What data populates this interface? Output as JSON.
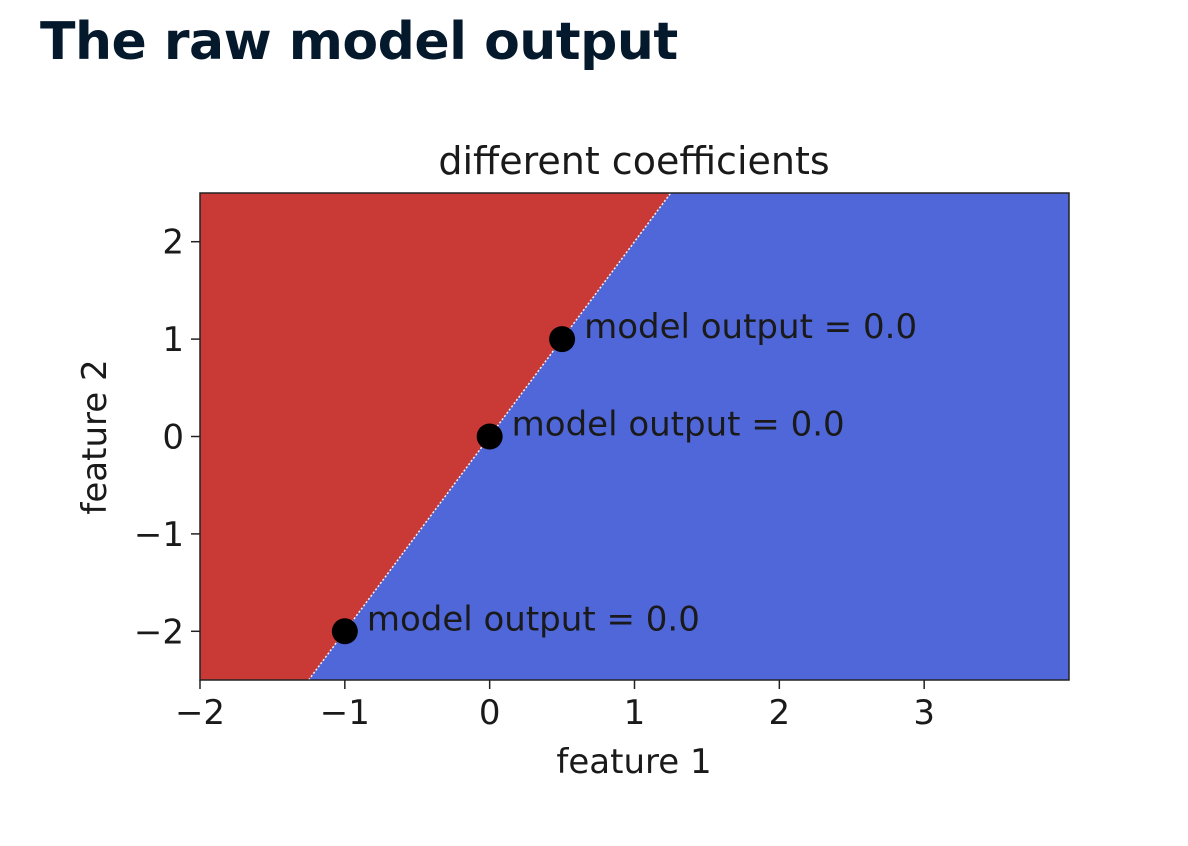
{
  "page": {
    "title": "The raw model output"
  },
  "chart_data": {
    "type": "scatter",
    "title": "different coefficients",
    "xlabel": "feature 1",
    "ylabel": "feature 2",
    "xlim": [
      -2,
      4
    ],
    "ylim": [
      -2.5,
      2.5
    ],
    "x_ticks": [
      -2,
      -1,
      0,
      1,
      2,
      3
    ],
    "y_ticks": [
      -2,
      -1,
      0,
      1,
      2
    ],
    "x_tick_labels": [
      "−2",
      "−1",
      "0",
      "1",
      "2",
      "3"
    ],
    "y_tick_labels": [
      "−2",
      "−1",
      "0",
      "1",
      "2"
    ],
    "decision_boundary": {
      "slope": 2,
      "intercept": 0
    },
    "regions": {
      "left_color": "#c93a37",
      "right_color": "#4f67d9"
    },
    "points": [
      {
        "x": 0.5,
        "y": 1,
        "label": "model output = 0.0"
      },
      {
        "x": 0,
        "y": 0,
        "label": "model output = 0.0"
      },
      {
        "x": -1,
        "y": -2,
        "label": "model output = 0.0"
      }
    ],
    "grid": false,
    "legend": "none"
  }
}
